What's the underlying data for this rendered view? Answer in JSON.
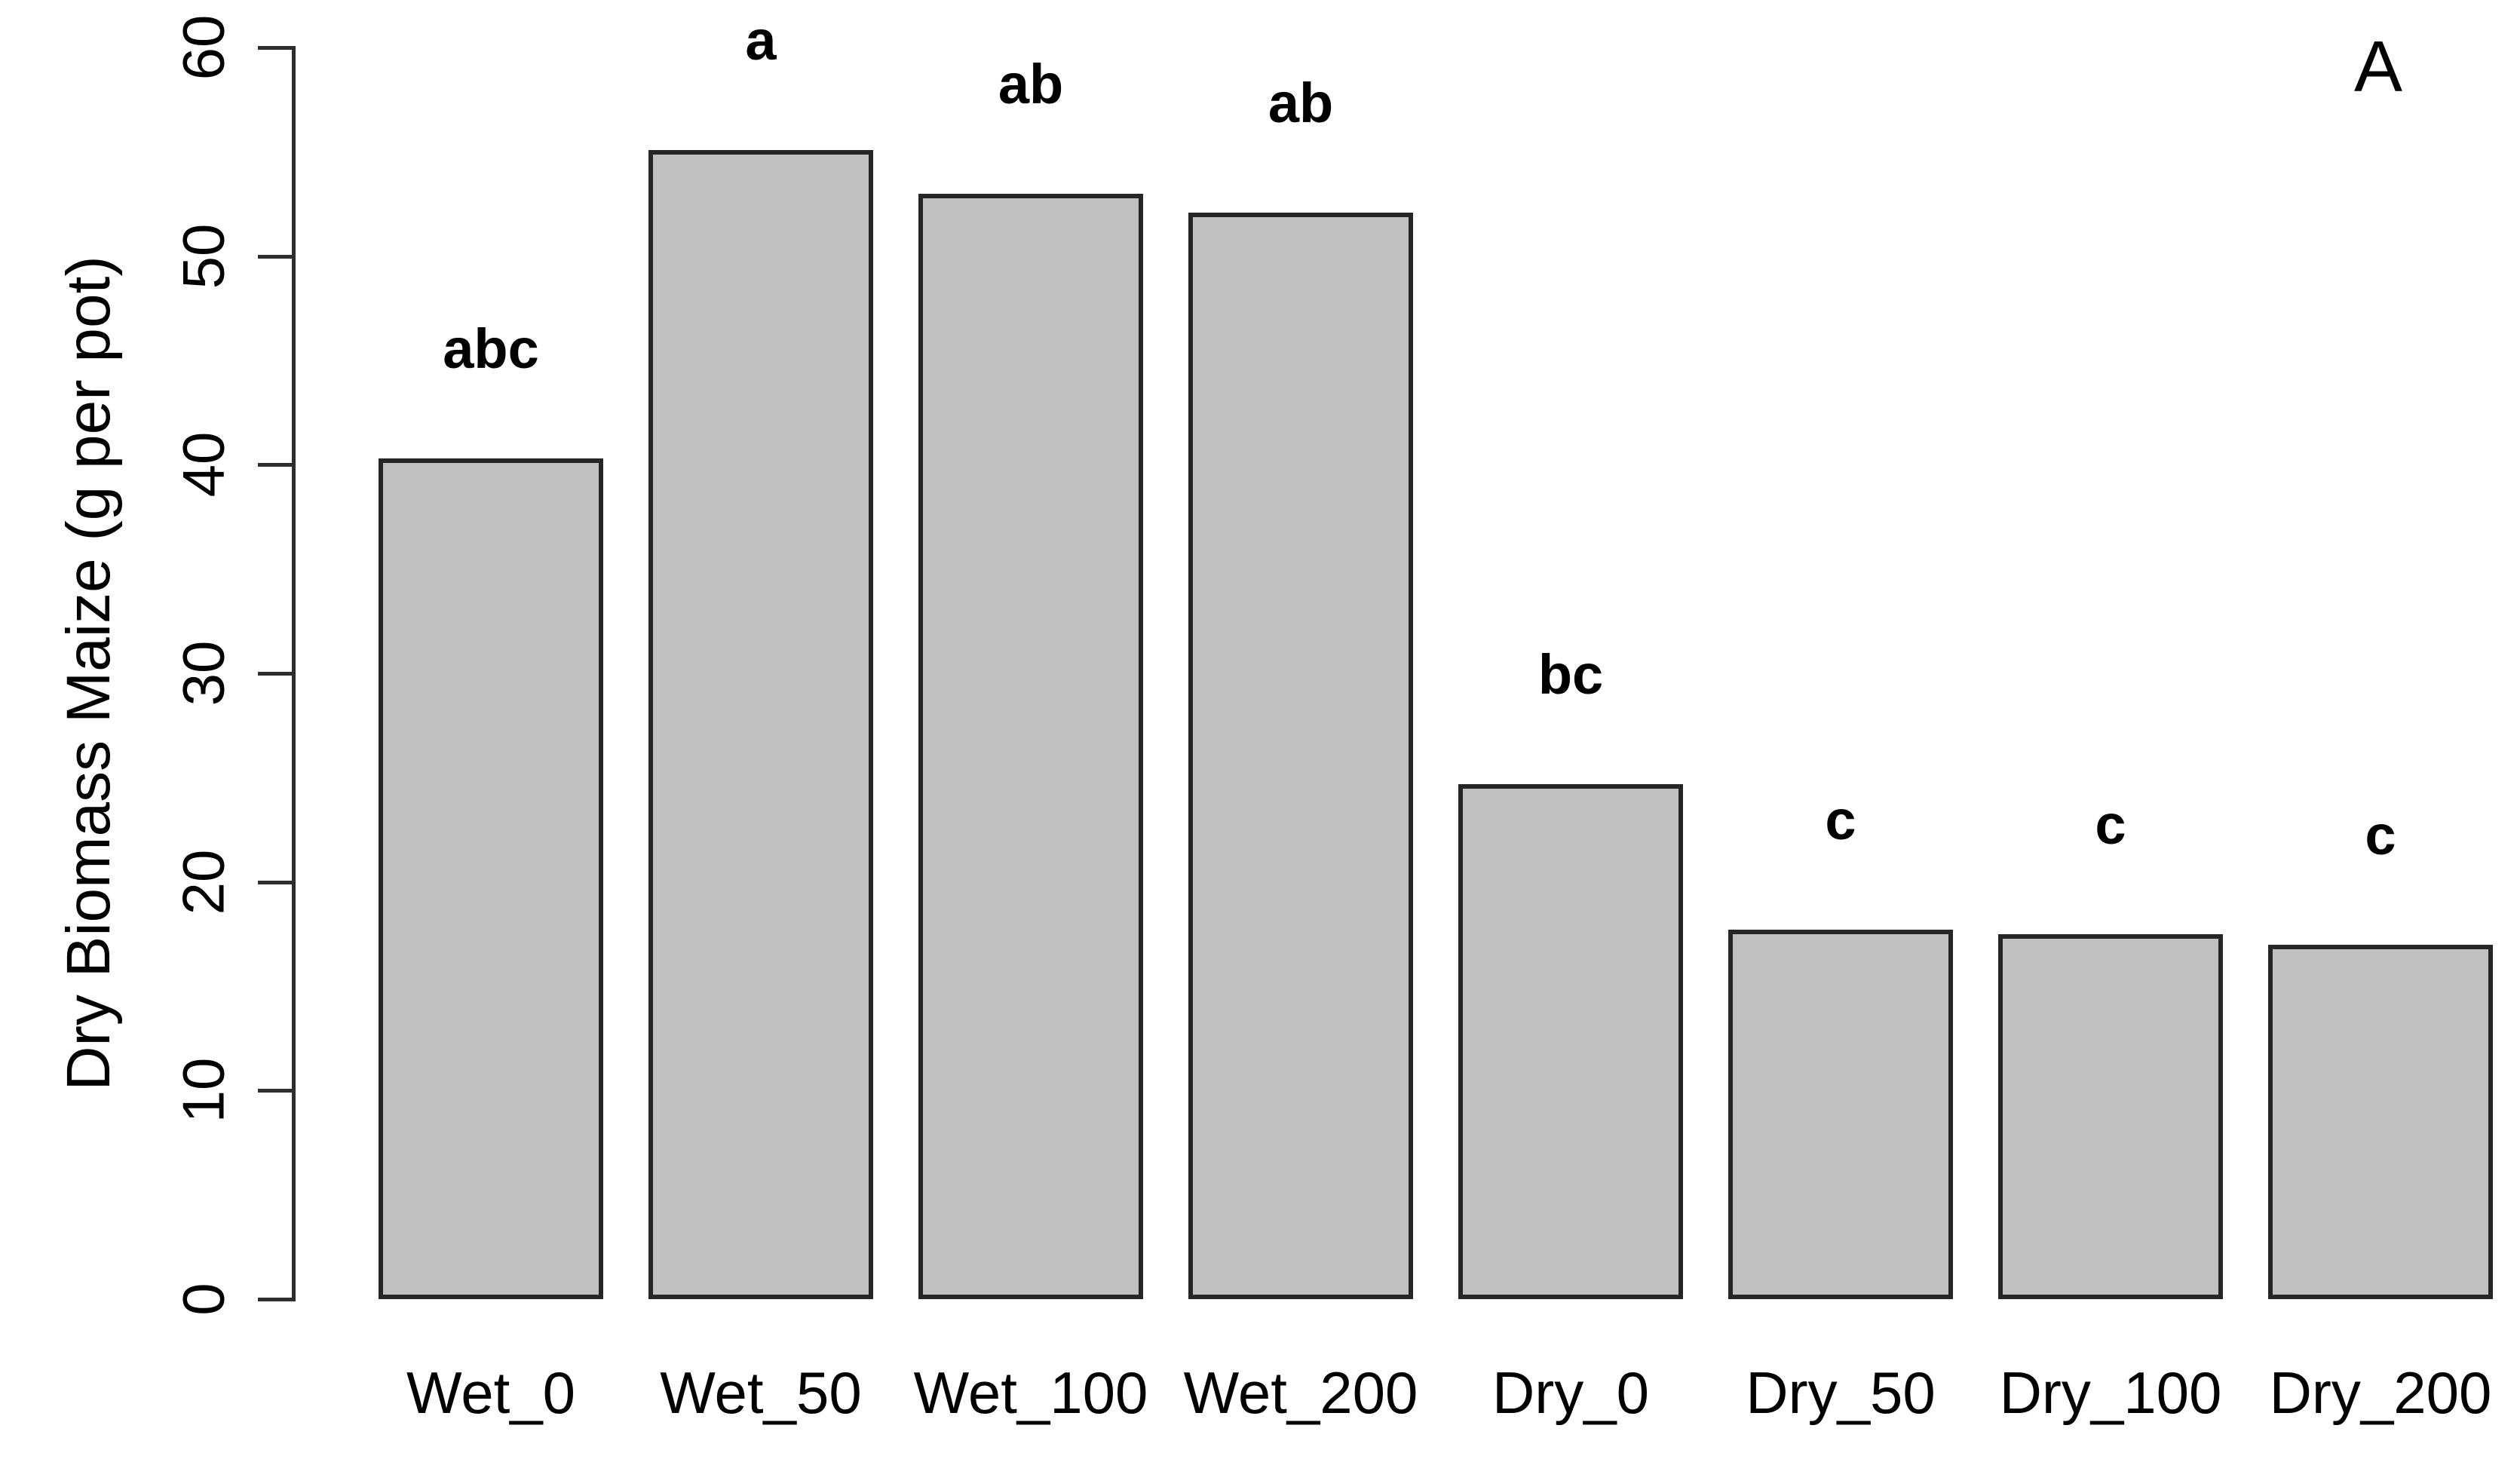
{
  "chart_data": {
    "type": "bar",
    "title": "",
    "panel_label": "A",
    "ylabel": "Dry Biomass Maize (g per pot)",
    "xlabel": "",
    "ylim": [
      0,
      60
    ],
    "yticks": [
      0,
      10,
      20,
      30,
      40,
      50,
      60
    ],
    "categories": [
      "Wet_0",
      "Wet_50",
      "Wet_100",
      "Wet_200",
      "Dry_0",
      "Dry_50",
      "Dry_100",
      "Dry_200"
    ],
    "values": [
      40.3,
      55.1,
      53.0,
      52.1,
      24.7,
      17.7,
      17.5,
      17.0
    ],
    "significance_letters": [
      "abc",
      "a",
      "ab",
      "ab",
      "bc",
      "c",
      "c",
      "c"
    ],
    "bar_fill_color": "#c0c0c0",
    "bar_border_color": "#262626",
    "axis_color": "#2e2e2e",
    "text_color": "#000000",
    "grid": false,
    "legend": false
  }
}
